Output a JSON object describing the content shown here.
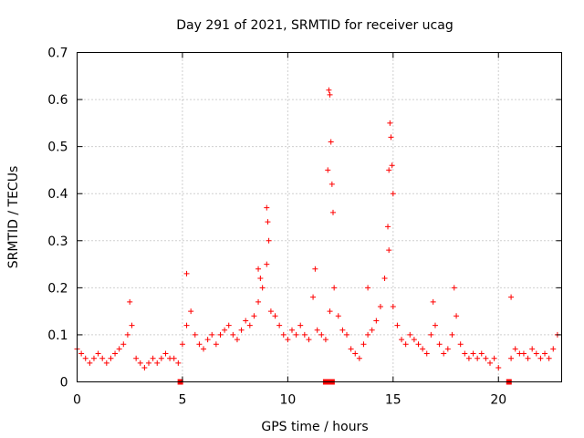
{
  "chart_data": {
    "type": "scatter",
    "title": "Day 291 of 2021, SRMTID for receiver ucag",
    "xlabel": "GPS time / hours",
    "ylabel": "SRMTID / TECUs",
    "xlim": [
      0,
      23
    ],
    "ylim": [
      0,
      0.7
    ],
    "xticks": [
      0,
      5,
      10,
      15,
      20
    ],
    "xtick_labels": [
      "0",
      "5",
      "10",
      "15",
      "20"
    ],
    "yticks": [
      0,
      0.1,
      0.2,
      0.3,
      0.4,
      0.5,
      0.6,
      0.7
    ],
    "ytick_labels": [
      "0",
      "0.1",
      "0.2",
      "0.3",
      "0.4",
      "0.5",
      "0.6",
      "0.7"
    ],
    "grid": true,
    "marker": "+",
    "color": "#ff0000",
    "series": [
      {
        "name": "SRMTID",
        "x": [
          0.0,
          0.2,
          0.4,
          0.6,
          0.8,
          1.0,
          1.2,
          1.4,
          1.6,
          1.8,
          2.0,
          2.2,
          2.4,
          2.6,
          2.8,
          3.0,
          3.2,
          3.4,
          3.6,
          3.8,
          4.0,
          4.2,
          4.4,
          4.6,
          4.8,
          5.0,
          5.2,
          5.4,
          5.6,
          5.8,
          6.0,
          6.2,
          6.4,
          6.6,
          6.8,
          7.0,
          7.2,
          7.4,
          7.6,
          7.8,
          8.0,
          8.2,
          8.4,
          8.6,
          8.8,
          9.0,
          9.2,
          9.4,
          9.6,
          9.8,
          10.0,
          10.2,
          10.4,
          10.6,
          10.8,
          11.0,
          11.2,
          11.4,
          11.6,
          11.8,
          12.0,
          12.2,
          12.4,
          12.6,
          12.8,
          13.0,
          13.2,
          13.4,
          13.6,
          13.8,
          14.0,
          14.2,
          14.4,
          14.6,
          14.8,
          15.0,
          15.2,
          15.4,
          15.6,
          15.8,
          16.0,
          16.2,
          16.4,
          16.6,
          16.8,
          17.0,
          17.2,
          17.4,
          17.6,
          17.8,
          18.0,
          18.2,
          18.4,
          18.6,
          18.8,
          19.0,
          19.2,
          19.4,
          19.6,
          19.8,
          20.0,
          20.6,
          20.8,
          21.0,
          21.2,
          21.4,
          21.6,
          21.8,
          22.0,
          22.2,
          22.4,
          22.6,
          22.8,
          9.0,
          9.05,
          9.1,
          11.9,
          11.95,
          12.0,
          12.05,
          12.1,
          12.15,
          14.75,
          14.8,
          14.85,
          14.9,
          14.95,
          15.0,
          2.5,
          5.2,
          8.6,
          8.7,
          11.3,
          13.8,
          16.9,
          17.9,
          20.6
        ],
        "y": [
          0.07,
          0.06,
          0.05,
          0.04,
          0.05,
          0.06,
          0.05,
          0.04,
          0.05,
          0.06,
          0.07,
          0.08,
          0.1,
          0.12,
          0.05,
          0.04,
          0.03,
          0.04,
          0.05,
          0.04,
          0.05,
          0.06,
          0.05,
          0.05,
          0.04,
          0.08,
          0.12,
          0.15,
          0.1,
          0.08,
          0.07,
          0.09,
          0.1,
          0.08,
          0.1,
          0.11,
          0.12,
          0.1,
          0.09,
          0.11,
          0.13,
          0.12,
          0.14,
          0.17,
          0.2,
          0.25,
          0.15,
          0.14,
          0.12,
          0.1,
          0.09,
          0.11,
          0.1,
          0.12,
          0.1,
          0.09,
          0.18,
          0.11,
          0.1,
          0.09,
          0.15,
          0.2,
          0.14,
          0.11,
          0.1,
          0.07,
          0.06,
          0.05,
          0.08,
          0.1,
          0.11,
          0.13,
          0.16,
          0.22,
          0.28,
          0.16,
          0.12,
          0.09,
          0.08,
          0.1,
          0.09,
          0.08,
          0.07,
          0.06,
          0.1,
          0.12,
          0.08,
          0.06,
          0.07,
          0.1,
          0.14,
          0.08,
          0.06,
          0.05,
          0.06,
          0.05,
          0.06,
          0.05,
          0.04,
          0.05,
          0.03,
          0.05,
          0.07,
          0.06,
          0.06,
          0.05,
          0.07,
          0.06,
          0.05,
          0.06,
          0.05,
          0.07,
          0.1,
          0.37,
          0.34,
          0.3,
          0.45,
          0.62,
          0.61,
          0.51,
          0.42,
          0.36,
          0.33,
          0.45,
          0.55,
          0.52,
          0.46,
          0.4,
          0.17,
          0.23,
          0.24,
          0.22,
          0.24,
          0.2,
          0.17,
          0.2,
          0.18
        ]
      }
    ],
    "gap_markers_x": [
      4.9,
      11.8,
      11.95,
      12.1,
      20.5
    ]
  }
}
